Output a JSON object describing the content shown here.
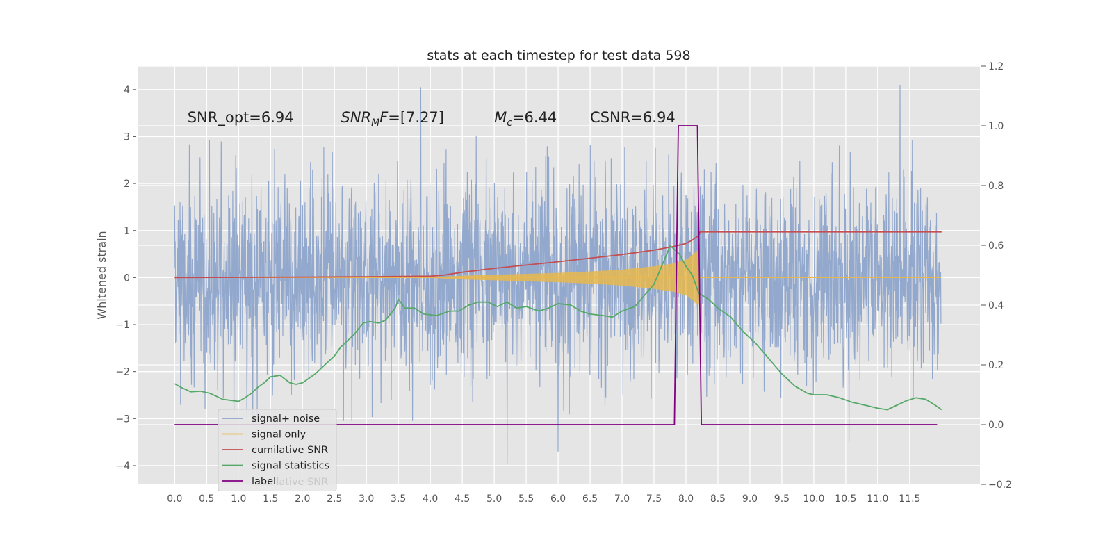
{
  "chart_data": {
    "type": "line",
    "title": "stats at each timestep for test data 598",
    "ylabel": "Whitened strain",
    "xlabel": "",
    "xlim": [
      -0.58,
      12.6
    ],
    "ylim": [
      -4.4,
      4.5
    ],
    "y2lim": [
      -0.2,
      1.2
    ],
    "xticks": [
      0.0,
      0.5,
      1.0,
      1.5,
      2.0,
      2.5,
      3.0,
      3.5,
      4.0,
      4.5,
      5.0,
      5.5,
      6.0,
      6.5,
      7.0,
      7.5,
      8.0,
      8.5,
      9.0,
      9.5,
      10.0,
      10.5,
      11.0,
      11.5
    ],
    "xtick_labels": [
      "0.0",
      "0.5",
      "1.0",
      "1.5",
      "2.0",
      "2.5",
      "3.0",
      "3.5",
      "4.0",
      "4.5",
      "5.0",
      "5.5",
      "6.0",
      "6.5",
      "7.0",
      "7.5",
      "8.0",
      "8.5",
      "9.0",
      "9.5",
      "10.0",
      "10.5",
      "11.0",
      "11.5"
    ],
    "yticks": [
      -4,
      -3,
      -2,
      -1,
      0,
      1,
      2,
      3,
      4
    ],
    "ytick_labels": [
      "−4",
      "−3",
      "−2",
      "−1",
      "0",
      "1",
      "2",
      "3",
      "4"
    ],
    "y2ticks": [
      -0.2,
      0.0,
      0.2,
      0.4,
      0.6,
      0.8,
      1.0,
      1.2
    ],
    "y2tick_labels": [
      "−0.2",
      "0.0",
      "0.2",
      "0.4",
      "0.6",
      "0.8",
      "1.0",
      "1.2"
    ],
    "grid": true,
    "legend_position": "lower-left",
    "annotations": [
      {
        "kind": "plain",
        "text": "SNR_opt=6.94",
        "x": 0.2,
        "y": 3.3
      },
      {
        "kind": "mf",
        "main": "SNR",
        "sub": "M",
        "rest": "F=[7.27]",
        "x": 2.6,
        "y": 3.3
      },
      {
        "kind": "mc",
        "main": "M",
        "sub": "c",
        "rest": "=6.44",
        "x": 5.0,
        "y": 3.3
      },
      {
        "kind": "plain",
        "text": "CSNR=6.94",
        "x": 6.5,
        "y": 3.3
      }
    ],
    "series": [
      {
        "name": "signal+ noise",
        "axis": "left",
        "color": "#8EA4CB",
        "noise_envelope": {
          "x_start": 0.0,
          "x_end": 11.99,
          "amplitude": 1.0,
          "peaks": [
            [
              3.85,
              4.05
            ],
            [
              11.35,
              4.1
            ],
            [
              5.2,
              -3.95
            ],
            [
              6.0,
              -3.7
            ],
            [
              10.55,
              -3.5
            ]
          ]
        }
      },
      {
        "name": "signal only",
        "axis": "left",
        "color": "#E8B84E",
        "chirp_envelope": {
          "x": [
            3.9,
            4.5,
            5.0,
            5.5,
            6.0,
            6.5,
            7.0,
            7.5,
            7.8,
            8.0,
            8.1,
            8.2,
            8.22
          ],
          "amplitude": [
            0.0,
            0.04,
            0.06,
            0.08,
            0.1,
            0.13,
            0.17,
            0.24,
            0.3,
            0.38,
            0.48,
            0.6,
            0.0
          ]
        }
      },
      {
        "name": "cumilative SNR",
        "axis": "right",
        "color": "#C44E52",
        "x": [
          0.0,
          1.0,
          2.0,
          3.0,
          4.0,
          4.2,
          4.5,
          5.0,
          5.5,
          6.0,
          6.5,
          7.0,
          7.5,
          7.8,
          8.0,
          8.1,
          8.2,
          8.22,
          9.0,
          10.0,
          11.0,
          12.0
        ],
        "y": [
          0.492,
          0.493,
          0.494,
          0.495,
          0.497,
          0.5,
          0.51,
          0.523,
          0.534,
          0.545,
          0.557,
          0.569,
          0.584,
          0.596,
          0.606,
          0.618,
          0.633,
          0.645,
          0.645,
          0.645,
          0.645,
          0.645
        ]
      },
      {
        "name": "signal statistics",
        "axis": "right",
        "color": "#55A868",
        "x": [
          0.0,
          0.1,
          0.25,
          0.4,
          0.55,
          0.65,
          0.75,
          0.85,
          1.0,
          1.1,
          1.2,
          1.3,
          1.4,
          1.5,
          1.65,
          1.8,
          1.9,
          2.0,
          2.2,
          2.4,
          2.5,
          2.6,
          2.8,
          2.95,
          3.05,
          3.2,
          3.3,
          3.45,
          3.5,
          3.6,
          3.75,
          3.9,
          4.1,
          4.3,
          4.45,
          4.6,
          4.75,
          4.9,
          5.05,
          5.2,
          5.35,
          5.5,
          5.7,
          5.85,
          6.0,
          6.2,
          6.35,
          6.5,
          6.7,
          6.85,
          7.0,
          7.2,
          7.4,
          7.5,
          7.6,
          7.7,
          7.75,
          7.8,
          7.9,
          8.0,
          8.1,
          8.2,
          8.35,
          8.5,
          8.7,
          8.9,
          9.1,
          9.3,
          9.5,
          9.7,
          9.9,
          10.0,
          10.2,
          10.4,
          10.6,
          10.8,
          11.0,
          11.15,
          11.3,
          11.45,
          11.6,
          11.75,
          11.9,
          12.0
        ],
        "y": [
          0.137,
          0.125,
          0.11,
          0.112,
          0.105,
          0.095,
          0.085,
          0.082,
          0.078,
          0.09,
          0.105,
          0.125,
          0.14,
          0.16,
          0.165,
          0.14,
          0.135,
          0.14,
          0.17,
          0.21,
          0.23,
          0.26,
          0.3,
          0.34,
          0.345,
          0.34,
          0.35,
          0.39,
          0.42,
          0.39,
          0.39,
          0.37,
          0.365,
          0.38,
          0.38,
          0.4,
          0.41,
          0.41,
          0.395,
          0.41,
          0.39,
          0.395,
          0.38,
          0.39,
          0.405,
          0.4,
          0.38,
          0.37,
          0.365,
          0.36,
          0.38,
          0.395,
          0.445,
          0.47,
          0.52,
          0.57,
          0.6,
          0.59,
          0.57,
          0.53,
          0.5,
          0.44,
          0.42,
          0.39,
          0.36,
          0.31,
          0.27,
          0.22,
          0.17,
          0.13,
          0.105,
          0.1,
          0.1,
          0.09,
          0.075,
          0.065,
          0.055,
          0.05,
          0.065,
          0.08,
          0.09,
          0.085,
          0.065,
          0.05
        ]
      },
      {
        "name": "label",
        "axis": "right",
        "color": "#800080",
        "x": [
          0.0,
          7.82,
          7.88,
          8.18,
          8.24,
          11.93
        ],
        "y": [
          0.0,
          0.0,
          1.0,
          1.0,
          0.0,
          0.0
        ]
      }
    ],
    "legend_ghost_text": "cumilative SNR"
  }
}
